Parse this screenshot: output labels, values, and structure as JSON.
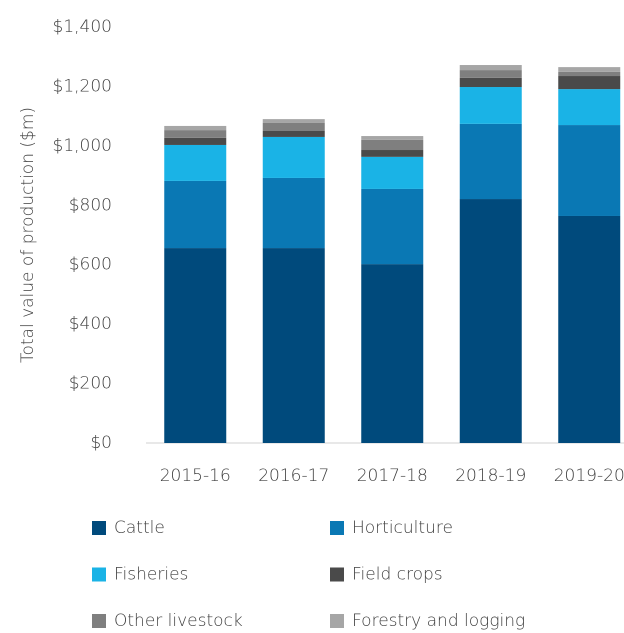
{
  "chart_data": {
    "type": "bar",
    "stacked": true,
    "ylabel": "Total value of production ($m)",
    "categories": [
      "2015-16",
      "2016-17",
      "2017-18",
      "2018-19",
      "2019-20"
    ],
    "series": [
      {
        "name": "Cattle",
        "color": "#004a7c",
        "values": [
          656,
          656,
          602,
          821,
          764
        ]
      },
      {
        "name": "Horticulture",
        "color": "#0a78b4",
        "values": [
          226,
          236,
          253,
          253,
          306
        ]
      },
      {
        "name": "Fisheries",
        "color": "#1ab3e6",
        "values": [
          121,
          138,
          108,
          124,
          121
        ]
      },
      {
        "name": "Field crops",
        "color": "#4a4a4a",
        "values": [
          24,
          20,
          23,
          31,
          44
        ]
      },
      {
        "name": "Other livestock",
        "color": "#7f7f7f",
        "values": [
          26,
          27,
          34,
          26,
          14
        ]
      },
      {
        "name": "Forestry and logging",
        "color": "#a6a6a6",
        "values": [
          14,
          13,
          13,
          17,
          16
        ]
      }
    ],
    "ylim": [
      0,
      1400
    ],
    "yticks": [
      {
        "value": 0,
        "label": "$0"
      },
      {
        "value": 200,
        "label": "$200"
      },
      {
        "value": 400,
        "label": "$400"
      },
      {
        "value": 600,
        "label": "$600"
      },
      {
        "value": 800,
        "label": "$800"
      },
      {
        "value": 1000,
        "label": "$1,000"
      },
      {
        "value": 1200,
        "label": "$1,200"
      },
      {
        "value": 1400,
        "label": "$1,400"
      }
    ],
    "legend": "bottom"
  }
}
